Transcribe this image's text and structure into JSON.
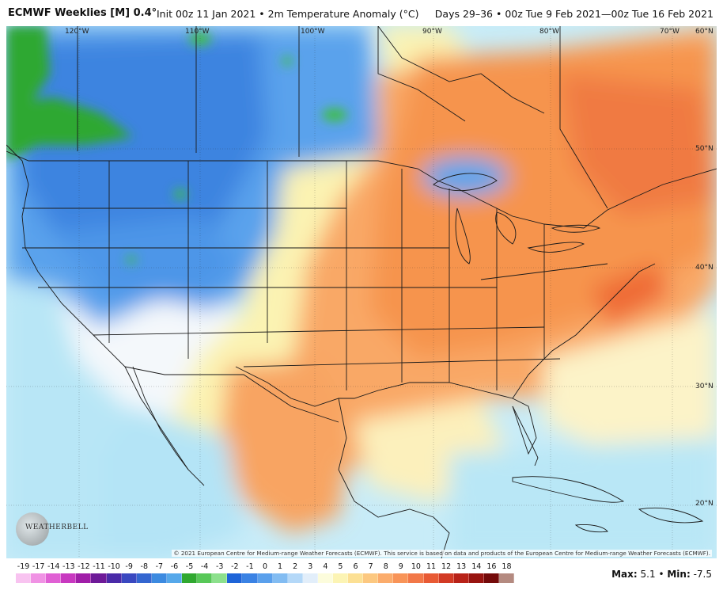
{
  "header": {
    "title_main": "ECMWF Weeklies [M] 0.4°",
    "title_sub": "Init 00z 11 Jan 2021 • 2m Temperature Anomaly (°C)",
    "title_right": "Days 29–36 • 00z Tue 9 Feb 2021—00z Tue 16 Feb 2021"
  },
  "map": {
    "longitude_labels": [
      "120°W",
      "110°W",
      "100°W",
      "90°W",
      "80°W",
      "70°W"
    ],
    "latitude_labels": [
      "60°N",
      "50°N",
      "40°N",
      "30°N",
      "20°N"
    ],
    "copyright": "© 2021 European Centre for Medium-range Weather Forecasts (ECMWF). This service is based on data and products of the European Centre for Medium-range Weather Forecasts (ECMWF).",
    "logo_text": "WEATHERBELL"
  },
  "colorbar": {
    "labels": [
      "-19",
      "-17",
      "-14",
      "-13",
      "-12",
      "-11",
      "-10",
      "-9",
      "-8",
      "-7",
      "-6",
      "-5",
      "-4",
      "-3",
      "-2",
      "-1",
      "0",
      "1",
      "2",
      "3",
      "4",
      "5",
      "6",
      "7",
      "8",
      "9",
      "10",
      "11",
      "12",
      "13",
      "14",
      "16",
      "18"
    ],
    "colors": [
      "#f8c3f0",
      "#f092e4",
      "#e060d4",
      "#c838c0",
      "#a01ea8",
      "#6e1a98",
      "#4a2aa8",
      "#3a48c0",
      "#3466d0",
      "#3c8ae0",
      "#56a8ea",
      "#30a830",
      "#58c858",
      "#8ce08c",
      "#1e64d8",
      "#3a82e4",
      "#5aa0ec",
      "#82bcf2",
      "#b4d8f8",
      "#e2eefa",
      "#fcfcdc",
      "#fcf4b4",
      "#fce094",
      "#fcc880",
      "#fbac6c",
      "#f89458",
      "#f27848",
      "#e85a34",
      "#d23a24",
      "#b82218",
      "#981410",
      "#740a0a",
      "#b48a80"
    ],
    "max_label": "Max:",
    "max_value": "5.1",
    "min_label": "Min:",
    "min_value": "-7.5",
    "separator": "•"
  }
}
